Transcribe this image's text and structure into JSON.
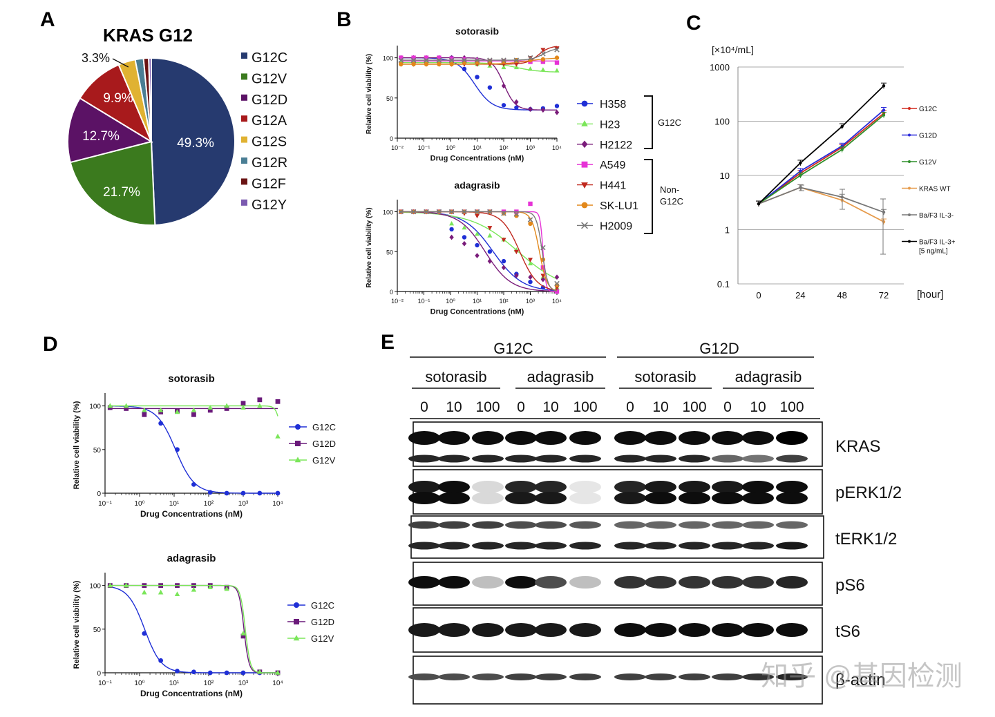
{
  "panels": {
    "A": "A",
    "B": "B",
    "C": "C",
    "D": "D",
    "E": "E"
  },
  "pie": {
    "title": "KRAS G12",
    "slices": [
      {
        "name": "G12C",
        "value": 49.3,
        "color": "#263a6f",
        "label": "49.3%"
      },
      {
        "name": "G12V",
        "value": 21.7,
        "color": "#3b7a1e",
        "label": "21.7%"
      },
      {
        "name": "G12D",
        "value": 12.7,
        "color": "#5b1265",
        "label": "12.7%"
      },
      {
        "name": "G12A",
        "value": 9.9,
        "color": "#a81a1c",
        "label": "9.9%"
      },
      {
        "name": "G12S",
        "value": 3.3,
        "color": "#e0b232",
        "label": "3.3%"
      },
      {
        "name": "G12R",
        "value": 1.6,
        "color": "#4a7e94",
        "label": ""
      },
      {
        "name": "G12F",
        "value": 1.0,
        "color": "#6a1414",
        "label": ""
      },
      {
        "name": "G12Y",
        "value": 0.5,
        "color": "#7b5bb0",
        "label": ""
      }
    ]
  },
  "chart_data": [
    {
      "type": "line",
      "id": "B-sotorasib",
      "title": "sotorasib",
      "xlabel": "Drug Concentrations (nM)",
      "ylabel": "Relative cell viability (%)",
      "xscale": "log",
      "xlim": [
        0.01,
        10000
      ],
      "ylim": [
        0,
        110
      ],
      "yticks": [
        0,
        50,
        100
      ],
      "xticks": [
        "10⁻²",
        "10⁻¹",
        "10⁰",
        "10¹",
        "10²",
        "10³",
        "10⁴"
      ],
      "x": [
        0.0137,
        0.041,
        0.123,
        0.37,
        1.1,
        3.3,
        10,
        30,
        100,
        300,
        1000,
        3000,
        10000
      ],
      "series": [
        {
          "name": "H358",
          "color": "#1f2fd6",
          "marker": "circle",
          "curve": {
            "top": 100,
            "bottom": 35,
            "ec50": 8,
            "hill": 1.3
          },
          "values": [
            100,
            100,
            100,
            100,
            100,
            86,
            76,
            63,
            41,
            38,
            36,
            37,
            40
          ]
        },
        {
          "name": "H23",
          "color": "#7be65a",
          "marker": "triangle",
          "curve": {
            "top": 94,
            "bottom": 82,
            "ec50": 300,
            "hill": 1
          },
          "values": [
            94,
            94,
            94,
            94,
            94,
            94,
            92,
            90,
            88,
            88,
            86,
            85,
            84
          ]
        },
        {
          "name": "H2122",
          "color": "#7a1c7a",
          "marker": "diamond",
          "curve": {
            "top": 100,
            "bottom": 35,
            "ec50": 100,
            "hill": 2
          },
          "values": [
            100,
            100,
            100,
            100,
            100,
            100,
            98,
            95,
            65,
            45,
            36,
            35,
            32
          ]
        },
        {
          "name": "A549",
          "color": "#e633d6",
          "marker": "square",
          "curve": {
            "top": 96,
            "bottom": 96,
            "ec50": 100,
            "hill": 1
          },
          "values": [
            100,
            100,
            100,
            100,
            99,
            98,
            97,
            96,
            96,
            95,
            95,
            95,
            94
          ]
        },
        {
          "name": "H441",
          "color": "#c0281e",
          "marker": "triangle-down",
          "curve": {
            "top": 92,
            "bottom": 115,
            "ec50": 2000,
            "hill": 2
          },
          "values": [
            92,
            92,
            92,
            92,
            92,
            92,
            92,
            92,
            92,
            92,
            100,
            110,
            112
          ]
        },
        {
          "name": "SK-LU1",
          "color": "#e2881b",
          "marker": "circle",
          "curve": {
            "top": 92,
            "bottom": 100,
            "ec50": 800,
            "hill": 1
          },
          "values": [
            92,
            92,
            92,
            92,
            92,
            94,
            95,
            96,
            96,
            97,
            97,
            98,
            100
          ]
        },
        {
          "name": "H2009",
          "color": "#7a7a7a",
          "marker": "x",
          "curve": {
            "top": 97,
            "bottom": 112,
            "ec50": 3000,
            "hill": 2
          },
          "values": [
            97,
            97,
            97,
            97,
            97,
            97,
            97,
            97,
            97,
            97,
            100,
            105,
            110
          ]
        }
      ]
    },
    {
      "type": "line",
      "id": "B-adagrasib",
      "title": "adagrasib",
      "xlabel": "Drug Concentrations (nM)",
      "ylabel": "Relative cell viability (%)",
      "xscale": "log",
      "xlim": [
        0.01,
        10000
      ],
      "ylim": [
        0,
        110
      ],
      "yticks": [
        0,
        50,
        100
      ],
      "xticks": [
        "10⁻²",
        "10⁻¹",
        "10⁰",
        "10¹",
        "10²",
        "10³",
        "10⁴"
      ],
      "x": [
        0.0137,
        0.041,
        0.123,
        0.37,
        1.1,
        3.3,
        10,
        30,
        100,
        300,
        1000,
        3000,
        10000
      ],
      "series": [
        {
          "name": "H358",
          "color": "#1f2fd6",
          "marker": "circle",
          "curve": {
            "top": 100,
            "bottom": 0,
            "ec50": 40,
            "hill": 0.8
          },
          "values": [
            100,
            100,
            100,
            100,
            78,
            68,
            58,
            50,
            38,
            22,
            12,
            5,
            2
          ]
        },
        {
          "name": "H23",
          "color": "#7be65a",
          "marker": "triangle",
          "curve": {
            "top": 100,
            "bottom": 0,
            "ec50": 350,
            "hill": 0.5
          },
          "values": [
            100,
            100,
            100,
            100,
            85,
            80,
            72,
            70,
            65,
            52,
            35,
            18,
            5
          ]
        },
        {
          "name": "H2122",
          "color": "#7a1c7a",
          "marker": "diamond",
          "curve": {
            "top": 100,
            "bottom": 0,
            "ec50": 20,
            "hill": 0.9
          },
          "values": [
            100,
            100,
            100,
            100,
            68,
            60,
            45,
            38,
            30,
            20,
            18,
            15,
            18
          ]
        },
        {
          "name": "A549",
          "color": "#e633d6",
          "marker": "square",
          "curve": {
            "top": 100,
            "bottom": 0,
            "ec50": 3000,
            "hill": 8
          },
          "values": [
            100,
            100,
            100,
            100,
            100,
            100,
            100,
            100,
            100,
            100,
            110,
            30,
            0
          ]
        },
        {
          "name": "H441",
          "color": "#c0281e",
          "marker": "triangle-down",
          "curve": {
            "top": 100,
            "bottom": 0,
            "ec50": 400,
            "hill": 1.3
          },
          "values": [
            100,
            100,
            100,
            100,
            100,
            98,
            95,
            80,
            65,
            50,
            40,
            20,
            5
          ]
        },
        {
          "name": "SK-LU1",
          "color": "#e2881b",
          "marker": "circle",
          "curve": {
            "top": 100,
            "bottom": 0,
            "ec50": 2200,
            "hill": 3
          },
          "values": [
            100,
            100,
            100,
            100,
            100,
            100,
            100,
            100,
            98,
            95,
            85,
            40,
            8
          ]
        },
        {
          "name": "H2009",
          "color": "#7a7a7a",
          "marker": "x",
          "curve": {
            "top": 100,
            "bottom": 0,
            "ec50": 2800,
            "hill": 4
          },
          "values": [
            100,
            100,
            100,
            100,
            100,
            100,
            100,
            100,
            98,
            97,
            90,
            55,
            10
          ]
        }
      ]
    },
    {
      "type": "line",
      "id": "C",
      "ylabel": "[×10⁴/mL]",
      "xlabel": "[hour]",
      "yscale": "log",
      "ylim": [
        0.1,
        1000
      ],
      "yticks": [
        "0.1",
        "1",
        "10",
        "100",
        "1000"
      ],
      "x": [
        0,
        24,
        48,
        72
      ],
      "series": [
        {
          "name": "G12C",
          "color": "#d22a1e",
          "values": [
            3,
            11,
            33,
            140
          ]
        },
        {
          "name": "G12D",
          "color": "#2929d9",
          "values": [
            3,
            12,
            35,
            160
          ]
        },
        {
          "name": "G12V",
          "color": "#2f8f2a",
          "values": [
            3,
            10,
            30,
            130
          ]
        },
        {
          "name": "KRAS WT",
          "color": "#e69a4a",
          "values": [
            3,
            6,
            3.5,
            1.4
          ]
        },
        {
          "name": "Ba/F3 IL-3-",
          "color": "#777777",
          "values": [
            3,
            6,
            4,
            2.1
          ]
        },
        {
          "name": "Ba/F3 IL-3+",
          "name2": "[5 ng/mL]",
          "color": "#000000",
          "values": [
            3,
            17,
            80,
            450
          ]
        }
      ]
    },
    {
      "type": "line",
      "id": "D-sotorasib",
      "title": "sotorasib",
      "xlabel": "Drug Concentrations (nM)",
      "ylabel": "Relative cell viability (%)",
      "xscale": "log",
      "xlim": [
        0.1,
        10000
      ],
      "ylim": [
        0,
        110
      ],
      "yticks": [
        0,
        50,
        100
      ],
      "xticks": [
        "10⁻¹",
        "10⁰",
        "10¹",
        "10²",
        "10³",
        "10⁴"
      ],
      "x": [
        0.14,
        0.41,
        1.37,
        4.1,
        12.3,
        37,
        111,
        333,
        1000,
        3000,
        10000
      ],
      "series": [
        {
          "name": "G12C",
          "color": "#1f2fd6",
          "marker": "circle",
          "curve": {
            "top": 100,
            "bottom": 0,
            "ec50": 11,
            "hill": 1.6
          },
          "values": [
            98,
            98,
            92,
            80,
            50,
            10,
            1,
            0,
            0,
            0,
            0
          ]
        },
        {
          "name": "G12D",
          "color": "#6a1a7a",
          "marker": "square",
          "curve": {
            "top": 97,
            "bottom": 97,
            "ec50": 100,
            "hill": 1
          },
          "values": [
            98,
            97,
            90,
            93,
            94,
            90,
            95,
            97,
            103,
            107,
            105
          ]
        },
        {
          "name": "G12V",
          "color": "#7be65a",
          "marker": "triangle",
          "curve": {
            "top": 100,
            "bottom": 0,
            "ec50": 14000,
            "hill": 6
          },
          "values": [
            100,
            100,
            95,
            95,
            93,
            95,
            98,
            100,
            98,
            100,
            65
          ]
        }
      ]
    },
    {
      "type": "line",
      "id": "D-adagrasib",
      "title": "adagrasib",
      "xlabel": "Drug Concentrations (nM)",
      "ylabel": "Relative cell viability (%)",
      "xscale": "log",
      "xlim": [
        0.1,
        10000
      ],
      "ylim": [
        0,
        110
      ],
      "yticks": [
        0,
        50,
        100
      ],
      "xticks": [
        "10⁻¹",
        "10⁰",
        "10¹",
        "10²",
        "10³",
        "10⁴"
      ],
      "x": [
        0.14,
        0.41,
        1.37,
        4.1,
        12.3,
        37,
        111,
        333,
        1000,
        3000,
        10000
      ],
      "series": [
        {
          "name": "G12C",
          "color": "#1f2fd6",
          "marker": "circle",
          "curve": {
            "top": 100,
            "bottom": 0,
            "ec50": 1.4,
            "hill": 1.8
          },
          "values": [
            100,
            100,
            45,
            14,
            2,
            1,
            0,
            0,
            0,
            0,
            0
          ]
        },
        {
          "name": "G12D",
          "color": "#6a1a7a",
          "marker": "square",
          "curve": {
            "top": 100,
            "bottom": 0,
            "ec50": 1050,
            "hill": 6
          },
          "values": [
            100,
            100,
            100,
            100,
            100,
            100,
            100,
            98,
            42,
            1,
            0
          ]
        },
        {
          "name": "G12V",
          "color": "#7be65a",
          "marker": "triangle",
          "curve": {
            "top": 100,
            "bottom": 0,
            "ec50": 1150,
            "hill": 6
          },
          "values": [
            100,
            100,
            92,
            92,
            90,
            95,
            98,
            96,
            45,
            1,
            0
          ]
        }
      ]
    }
  ],
  "blot": {
    "groups": [
      "G12C",
      "G12D"
    ],
    "drugs": [
      "sotorasib",
      "adagrasib",
      "sotorasib",
      "adagrasib"
    ],
    "doses": [
      "0",
      "10",
      "100",
      "0",
      "10",
      "100",
      "0",
      "10",
      "100",
      "0",
      "10",
      "100"
    ],
    "rows": [
      {
        "label": "KRAS",
        "bands": [
          [
            0.95,
            0.95,
            0.95,
            0.95,
            0.95,
            0.95,
            0.95,
            0.95,
            0.95,
            0.95,
            0.95,
            1.0
          ],
          [
            0.85,
            0.85,
            0.85,
            0.85,
            0.85,
            0.85,
            0.85,
            0.85,
            0.85,
            0.6,
            0.55,
            0.75
          ]
        ]
      },
      {
        "label": "pERK1/2",
        "bands": [
          [
            0.9,
            0.95,
            0.15,
            0.85,
            0.85,
            0.1,
            0.85,
            0.9,
            0.9,
            0.9,
            0.95,
            0.95
          ],
          [
            0.95,
            0.95,
            0.15,
            0.9,
            0.9,
            0.1,
            0.9,
            0.95,
            0.95,
            0.95,
            0.95,
            0.95
          ]
        ]
      },
      {
        "label": "tERK1/2",
        "bands": [
          [
            0.75,
            0.75,
            0.75,
            0.7,
            0.7,
            0.65,
            0.6,
            0.6,
            0.6,
            0.6,
            0.6,
            0.6
          ],
          [
            0.85,
            0.85,
            0.85,
            0.85,
            0.85,
            0.85,
            0.85,
            0.85,
            0.85,
            0.85,
            0.85,
            0.9
          ]
        ]
      },
      {
        "label": "pS6",
        "bands": [
          [
            0.95,
            0.95,
            0.25,
            0.95,
            0.7,
            0.25,
            0.8,
            0.8,
            0.8,
            0.8,
            0.8,
            0.85
          ]
        ]
      },
      {
        "label": "tS6",
        "bands": [
          [
            0.9,
            0.9,
            0.9,
            0.9,
            0.9,
            0.9,
            0.95,
            0.95,
            0.95,
            0.95,
            0.95,
            0.95
          ]
        ]
      },
      {
        "label": "β-actin",
        "bands": [
          [
            0.7,
            0.7,
            0.7,
            0.75,
            0.75,
            0.75,
            0.75,
            0.75,
            0.75,
            0.75,
            0.8,
            0.85
          ]
        ]
      }
    ],
    "watermark": "知乎 @基因检测"
  }
}
